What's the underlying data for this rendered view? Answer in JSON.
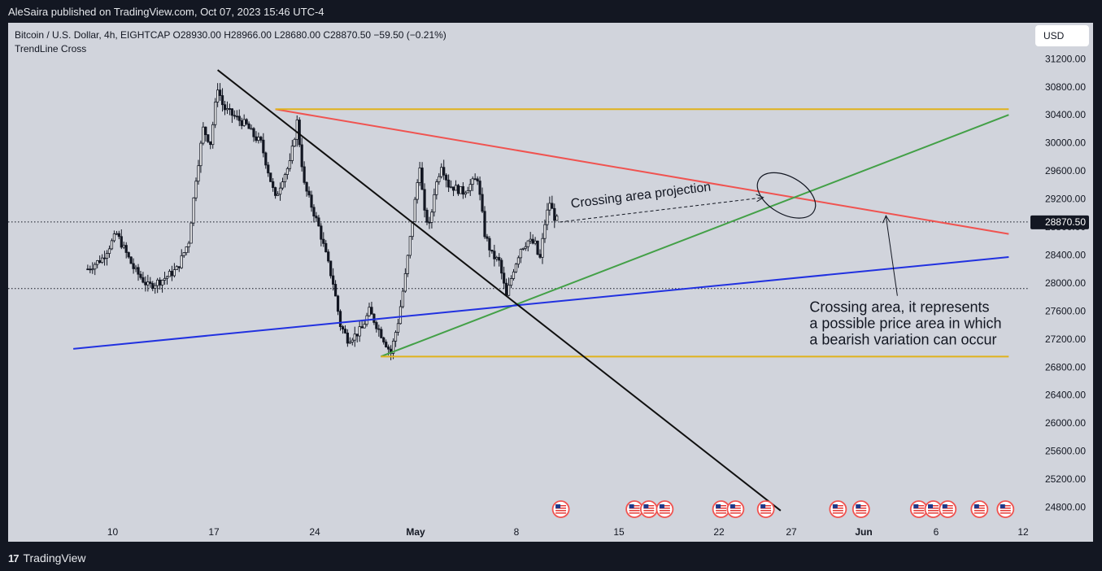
{
  "header": {
    "published": "AleSaira published on TradingView.com, Oct 07, 2023 15:46 UTC-4"
  },
  "legend": {
    "symbol_line": "Bitcoin / U.S. Dollar, 4h, EIGHTCAP  O28930.00  H28966.00  L28680.00  C28870.50  −59.50 (−0.21%)",
    "indicator": "TrendLine Cross"
  },
  "currency_button": "USD",
  "footer": {
    "logo_mark": "17",
    "brand": "TradingView"
  },
  "colors": {
    "panel_bg": "#d1d4dc",
    "page_bg": "#131722",
    "red_line": "#f05350",
    "green_line": "#43a047",
    "blue_line": "#2131e0",
    "gold_line": "#e0b21c",
    "black_line": "#0f0f0f"
  },
  "chart_data": {
    "type": "candlestick",
    "timeframe": "4h",
    "x_ticks": [
      "10",
      "17",
      "24",
      "May",
      "8",
      "15",
      "22",
      "27",
      "Jun",
      "6",
      "12"
    ],
    "y_ticks": [
      31200,
      30800,
      30400,
      30000,
      29600,
      29200,
      28800,
      28400,
      28000,
      27600,
      27200,
      26800,
      26400,
      26000,
      25600,
      25200,
      24800
    ],
    "ylim": [
      24600,
      31350
    ],
    "last_price": 28870.5,
    "last_price_label": "28870.50",
    "dotted_levels": [
      28870.5,
      27920
    ],
    "price_path": [
      [
        5.0,
        28200
      ],
      [
        6.0,
        28350
      ],
      [
        7.0,
        28700
      ],
      [
        8.2,
        28200
      ],
      [
        9.2,
        27950
      ],
      [
        10.2,
        28050
      ],
      [
        11.2,
        28200
      ],
      [
        12.0,
        28600
      ],
      [
        12.5,
        29500
      ],
      [
        13.0,
        30200
      ],
      [
        13.5,
        30000
      ],
      [
        14.0,
        30800
      ],
      [
        14.4,
        30500
      ],
      [
        15.0,
        30400
      ],
      [
        16.0,
        30250
      ],
      [
        16.5,
        30100
      ],
      [
        17.0,
        30000
      ],
      [
        17.5,
        29600
      ],
      [
        18.0,
        29200
      ],
      [
        18.5,
        29500
      ],
      [
        19.0,
        29700
      ],
      [
        19.5,
        30300
      ],
      [
        20.0,
        29400
      ],
      [
        20.5,
        29100
      ],
      [
        21.0,
        28800
      ],
      [
        21.5,
        28400
      ],
      [
        22.0,
        28000
      ],
      [
        22.5,
        27400
      ],
      [
        23.0,
        27200
      ],
      [
        23.5,
        27250
      ],
      [
        24.0,
        27350
      ],
      [
        24.5,
        27600
      ],
      [
        25.0,
        27400
      ],
      [
        25.5,
        27200
      ],
      [
        26.0,
        27000
      ],
      [
        26.5,
        27450
      ],
      [
        27.0,
        28100
      ],
      [
        27.5,
        28900
      ],
      [
        28.0,
        29700
      ],
      [
        28.3,
        29000
      ],
      [
        28.7,
        28800
      ],
      [
        29.0,
        29300
      ],
      [
        29.5,
        29700
      ],
      [
        30.0,
        29400
      ],
      [
        30.5,
        29350
      ],
      [
        31.0,
        29300
      ],
      [
        31.5,
        29400
      ],
      [
        32.0,
        29500
      ],
      [
        32.5,
        28700
      ],
      [
        33.0,
        28400
      ],
      [
        33.5,
        28300
      ],
      [
        34.0,
        27800
      ],
      [
        34.5,
        28200
      ],
      [
        35.0,
        28500
      ],
      [
        35.5,
        28600
      ],
      [
        36.0,
        28550
      ],
      [
        36.3,
        28300
      ],
      [
        36.7,
        28900
      ],
      [
        37.0,
        29150
      ],
      [
        37.3,
        28950
      ],
      [
        37.6,
        28870
      ]
    ],
    "trendlines": [
      {
        "color": "red",
        "from": [
          18.0,
          30480
        ],
        "to": [
          68.8,
          28700
        ]
      },
      {
        "color": "green",
        "from": [
          25.3,
          26950
        ],
        "to": [
          68.8,
          30400
        ]
      },
      {
        "color": "blue",
        "from": [
          4.0,
          27060
        ],
        "to": [
          68.8,
          28370
        ]
      },
      {
        "color": "gold",
        "from": [
          18.0,
          30480
        ],
        "to": [
          68.8,
          30480
        ]
      },
      {
        "color": "gold",
        "from": [
          25.3,
          26950
        ],
        "to": [
          68.8,
          26950
        ]
      },
      {
        "color": "black",
        "from": [
          14.0,
          31040
        ],
        "to": [
          53.0,
          24750
        ]
      }
    ],
    "annotations": [
      {
        "text": "Crossing area projection"
      },
      {
        "lines": [
          "Crossing area, it represents",
          "a possible price area in which",
          "a bearish variation can occur"
        ]
      }
    ],
    "crossing_point": [
      53.4,
      29250
    ]
  }
}
